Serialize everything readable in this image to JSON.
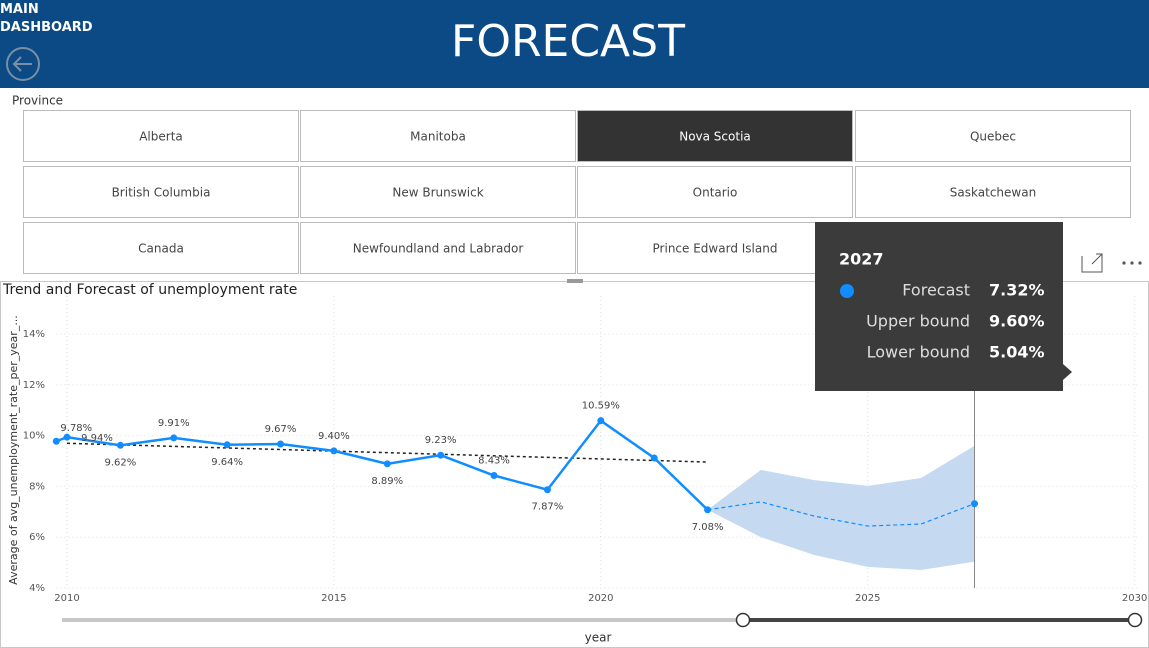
{
  "header": {
    "back_label": "MAIN DASHBOARD",
    "title": "FORECAST"
  },
  "slicer": {
    "label": "Province",
    "options": [
      [
        "Alberta",
        "Manitoba",
        "Nova Scotia",
        "Quebec"
      ],
      [
        "British Columbia",
        "New Brunswick",
        "Ontario",
        "Saskatchewan"
      ],
      [
        "Canada",
        "Newfoundland and Labrador",
        "Prince Edward Island"
      ]
    ],
    "selected": "Nova Scotia"
  },
  "chart_data": {
    "type": "line",
    "title": "Trend and Forecast of unemployment rate",
    "x_label": "year",
    "y_label": "Average of avg_unemployment_rate_per_year_...",
    "x": [
      2009.8,
      2010,
      2011,
      2012,
      2013,
      2014,
      2015,
      2016,
      2017,
      2018,
      2019,
      2020,
      2021,
      2022
    ],
    "values": [
      9.78,
      9.94,
      9.62,
      9.91,
      9.64,
      9.67,
      9.4,
      8.89,
      9.23,
      8.43,
      7.87,
      10.59,
      9.12,
      7.08
    ],
    "value_labels": [
      "9.78%",
      "9.94%",
      "9.62%",
      "9.91%",
      "9.64%",
      "9.67%",
      "9.40%",
      "8.89%",
      "9.23%",
      "8.43%",
      "7.87%",
      "10.59%",
      null,
      "7.08%"
    ],
    "color": "#118dff",
    "trend": {
      "x": [
        2010,
        2022
      ],
      "values": [
        9.7,
        8.96
      ],
      "color": "#222222"
    },
    "forecast": {
      "x": [
        2022,
        2023,
        2024,
        2025,
        2026,
        2027
      ],
      "values": [
        7.08,
        7.39,
        6.83,
        6.44,
        6.52,
        7.32
      ],
      "upper": [
        7.08,
        8.65,
        8.25,
        8.02,
        8.33,
        9.6
      ],
      "lower": [
        7.08,
        6.0,
        5.3,
        4.83,
        4.71,
        5.04
      ],
      "color": "#118dff",
      "band_color": "#c5d9f0"
    },
    "xlim": [
      2009.8,
      2030.1
    ],
    "xticks": [
      2010,
      2015,
      2020,
      2025,
      2030
    ],
    "ylim": [
      4,
      15.5
    ],
    "yticks": [
      {
        "value": 4,
        "label": "4%"
      },
      {
        "value": 6,
        "label": "6%"
      },
      {
        "value": 8,
        "label": "8%"
      },
      {
        "value": 10,
        "label": "10%"
      },
      {
        "value": 12,
        "label": "12%"
      },
      {
        "value": 14,
        "label": "14%"
      }
    ],
    "grid": true
  },
  "tooltip": {
    "title": "2027",
    "rows": [
      {
        "label": "Forecast",
        "value": "7.32%"
      },
      {
        "label": "Upper bound",
        "value": "9.60%"
      },
      {
        "label": "Lower bound",
        "value": "5.04%"
      }
    ]
  }
}
